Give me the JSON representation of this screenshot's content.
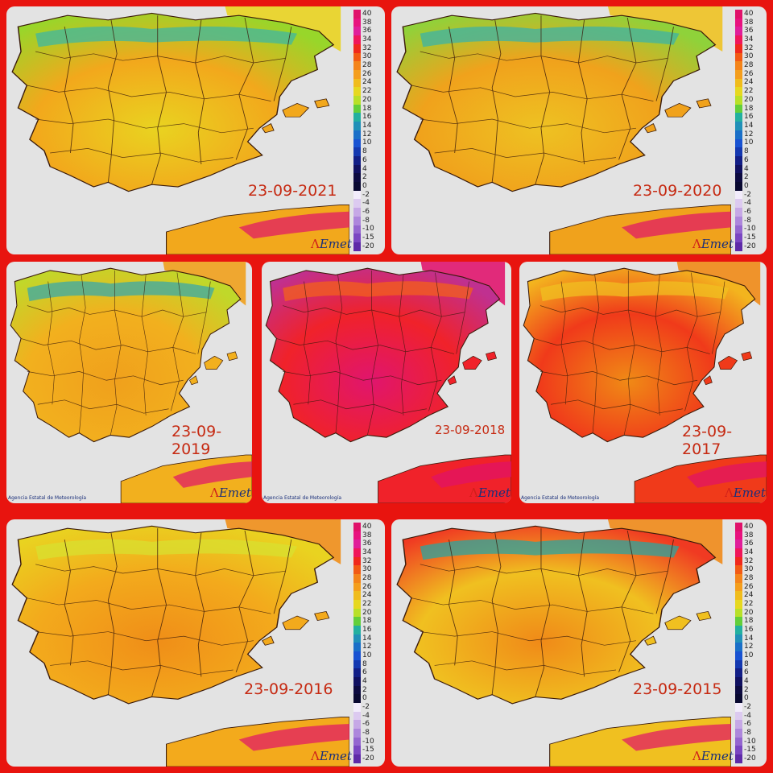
{
  "panels": [
    {
      "date": "23-09-2021",
      "theme": [
        "#e9d320",
        "#f2a81c",
        "#98d62a"
      ],
      "highlands": "#3fb7a0",
      "show_scale": true,
      "show_agency": false
    },
    {
      "date": "23-09-2020",
      "theme": [
        "#eec222",
        "#f0a21c",
        "#8fd23a"
      ],
      "highlands": "#3cb3a5",
      "show_scale": true,
      "show_agency": false
    },
    {
      "date": "23-09-2019",
      "theme": [
        "#f0a01c",
        "#f2b01e",
        "#c0d82a"
      ],
      "highlands": "#3aa8a8",
      "show_scale": false,
      "show_agency": true
    },
    {
      "date": "23-09-2018",
      "theme": [
        "#e0156e",
        "#f0222a",
        "#c03090"
      ],
      "highlands": "#f3601c",
      "show_scale": false,
      "show_agency": true
    },
    {
      "date": "23-09-2017",
      "theme": [
        "#f08a16",
        "#f03a1a",
        "#f3b41e"
      ],
      "highlands": "#f0c020",
      "show_scale": false,
      "show_agency": true
    },
    {
      "date": "23-09-2016",
      "theme": [
        "#f08e18",
        "#f3aa1c",
        "#e9d320"
      ],
      "highlands": "#d8e030",
      "show_scale": true,
      "show_agency": false
    },
    {
      "date": "23-09-2015",
      "theme": [
        "#f08a18",
        "#f0c020",
        "#f03a22"
      ],
      "highlands": "#2aa6a0",
      "show_scale": true,
      "show_agency": false
    }
  ],
  "scale": {
    "labels": [
      "40",
      "38",
      "36",
      "34",
      "32",
      "30",
      "28",
      "26",
      "24",
      "22",
      "20",
      "18",
      "16",
      "14",
      "12",
      "10",
      "8",
      "6",
      "4",
      "2",
      "0",
      "-2",
      "-4",
      "-6",
      "-8",
      "-10",
      "-15",
      "-20"
    ],
    "colors": [
      "#e0116a",
      "#e8127e",
      "#e01e9a",
      "#f0165a",
      "#f0281c",
      "#f25a14",
      "#f4841a",
      "#f49e1c",
      "#f0bc1c",
      "#e6d820",
      "#b8e028",
      "#62cf3a",
      "#22b0a0",
      "#2090b8",
      "#1a6fc8",
      "#1852d2",
      "#1438b0",
      "#121e86",
      "#101060",
      "#0c0a40",
      "#080830",
      "#f2ecfb",
      "#dccaf0",
      "#c6a8e6",
      "#ad86dc",
      "#9466d0",
      "#7a46c2",
      "#5e2aa8"
    ]
  },
  "logo": {
    "mark": "Λ",
    "text": "Emet"
  },
  "agency_text": "Agencia Estatal de Meteorología",
  "colors": {
    "background": "#e8140f",
    "sea": "#e3e3e3",
    "date_text": "#c62a12",
    "borders": "#3a1a0a"
  }
}
